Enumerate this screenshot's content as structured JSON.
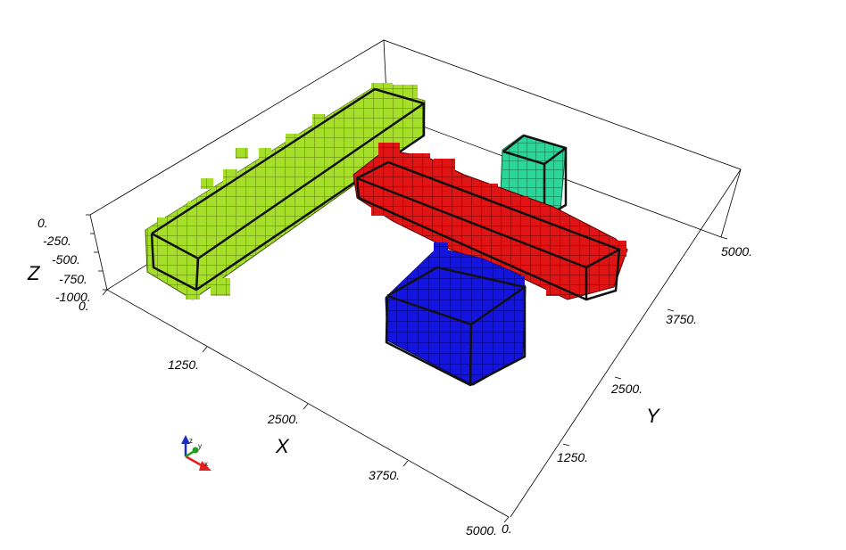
{
  "scene": {
    "background": "#ffffff",
    "axes": {
      "x": {
        "title": "X",
        "ticks": [
          "0.",
          "1250.",
          "2500.",
          "3750.",
          "5000."
        ]
      },
      "y": {
        "title": "Y",
        "ticks": [
          "0.",
          "1250.",
          "2500.",
          "3750.",
          "5000."
        ]
      },
      "z": {
        "title": "Z",
        "ticks": [
          "0.",
          "-250.",
          "-500.",
          "-750.",
          "-1000."
        ]
      }
    },
    "triad": {
      "x_label": "x",
      "y_label": "y",
      "z_label": "z",
      "x_color": "#e02020",
      "y_color": "#20a020",
      "z_color": "#1c2cc8"
    },
    "bodies": [
      {
        "name": "green-body",
        "color": "#a6df2a"
      },
      {
        "name": "red-body",
        "color": "#e01414"
      },
      {
        "name": "blue-body",
        "color": "#1414e0"
      },
      {
        "name": "teal-body",
        "color": "#2ad69a"
      }
    ]
  }
}
